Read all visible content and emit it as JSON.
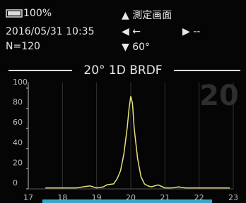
{
  "header": {
    "battery": "100%",
    "datetime": "2016/05/31 10:35",
    "count": "N=120",
    "up": "▲ 測定画面",
    "left": "◀ ←",
    "right": "▶ --",
    "down": "▼ 60°"
  },
  "chart_data": {
    "type": "line",
    "title": "20° 1D BRDF",
    "annotation": "20",
    "x": [
      17.5,
      17.8,
      18.1,
      18.4,
      18.6,
      18.8,
      19.0,
      19.2,
      19.3,
      19.5,
      19.6,
      19.7,
      19.8,
      19.9,
      19.95,
      20.0,
      20.05,
      20.1,
      20.2,
      20.3,
      20.4,
      20.5,
      20.6,
      20.8,
      21.0,
      21.2,
      21.4,
      21.6,
      21.8,
      22.0,
      22.3,
      22.6,
      22.9
    ],
    "series": [
      {
        "color": "#e6e27a",
        "values": [
          1,
          1,
          1,
          1,
          2,
          3,
          1,
          2,
          4,
          5,
          10,
          18,
          35,
          62,
          80,
          92,
          85,
          60,
          30,
          12,
          5,
          3,
          2,
          4,
          1,
          1,
          2,
          1,
          1,
          1,
          1,
          1,
          1
        ]
      }
    ],
    "xlim": [
      17,
      23
    ],
    "ylim": [
      0,
      100
    ],
    "xticks": [
      17,
      18,
      19,
      20,
      21,
      22,
      23
    ],
    "yticks": [
      0,
      20,
      40,
      60,
      80,
      100
    ],
    "grid": true
  }
}
